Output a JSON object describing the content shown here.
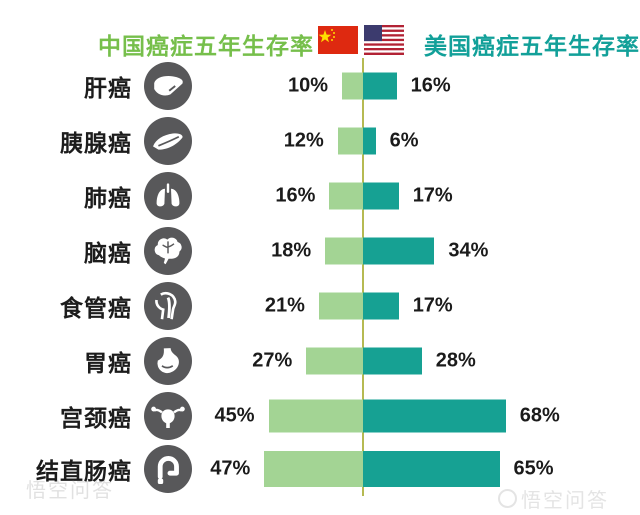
{
  "header": {
    "china_title": "中国癌症五年生存率",
    "usa_title": "美国癌症五年生存率"
  },
  "watermark": {
    "bottom_left": "悟空问答",
    "bottom_right": "悟空问答"
  },
  "colors": {
    "china_bar": "#a3d494",
    "usa_bar": "#16a193",
    "axis_line": "#b6ba52",
    "china_title": "#76bf4b",
    "usa_title": "#12a099",
    "icon_circle": "#58585a",
    "label_text": "#1c1c1c"
  },
  "chart_data": {
    "type": "bar",
    "variant": "diverging-horizontal",
    "unit": "%",
    "axis": "central vertical baseline, China bars extend left, USA bars extend right",
    "legend": [
      {
        "label": "中国癌症五年生存率",
        "color": "#a3d494",
        "flag": "china-flag-icon"
      },
      {
        "label": "美国癌症五年生存率",
        "color": "#16a193",
        "flag": "usa-flag-icon"
      }
    ],
    "categories": [
      "肝癌",
      "胰腺癌",
      "肺癌",
      "脑癌",
      "食管癌",
      "胃癌",
      "宫颈癌",
      "结直肠癌"
    ],
    "series": [
      {
        "name": "中国",
        "values": [
          10,
          12,
          16,
          18,
          21,
          27,
          45,
          47
        ]
      },
      {
        "name": "美国",
        "values": [
          16,
          6,
          17,
          34,
          17,
          28,
          68,
          65
        ]
      }
    ],
    "rows": [
      {
        "label": "肝癌",
        "icon": "liver-icon",
        "china_value": 10,
        "usa_value": 16,
        "china": "10%",
        "usa": "16%"
      },
      {
        "label": "胰腺癌",
        "icon": "pancreas-icon",
        "china_value": 12,
        "usa_value": 6,
        "china": "12%",
        "usa": "6%"
      },
      {
        "label": "肺癌",
        "icon": "lungs-icon",
        "china_value": 16,
        "usa_value": 17,
        "china": "16%",
        "usa": "17%"
      },
      {
        "label": "脑癌",
        "icon": "brain-icon",
        "china_value": 18,
        "usa_value": 34,
        "china": "18%",
        "usa": "34%"
      },
      {
        "label": "食管癌",
        "icon": "esophagus-icon",
        "china_value": 21,
        "usa_value": 17,
        "china": "21%",
        "usa": "17%"
      },
      {
        "label": "胃癌",
        "icon": "stomach-icon",
        "china_value": 27,
        "usa_value": 28,
        "china": "27%",
        "usa": "28%"
      },
      {
        "label": "宫颈癌",
        "icon": "uterus-icon",
        "china_value": 45,
        "usa_value": 68,
        "china": "45%",
        "usa": "68%"
      },
      {
        "label": "结直肠癌",
        "icon": "colon-icon",
        "china_value": 47,
        "usa_value": 65,
        "china": "47%",
        "usa": "65%"
      }
    ]
  }
}
